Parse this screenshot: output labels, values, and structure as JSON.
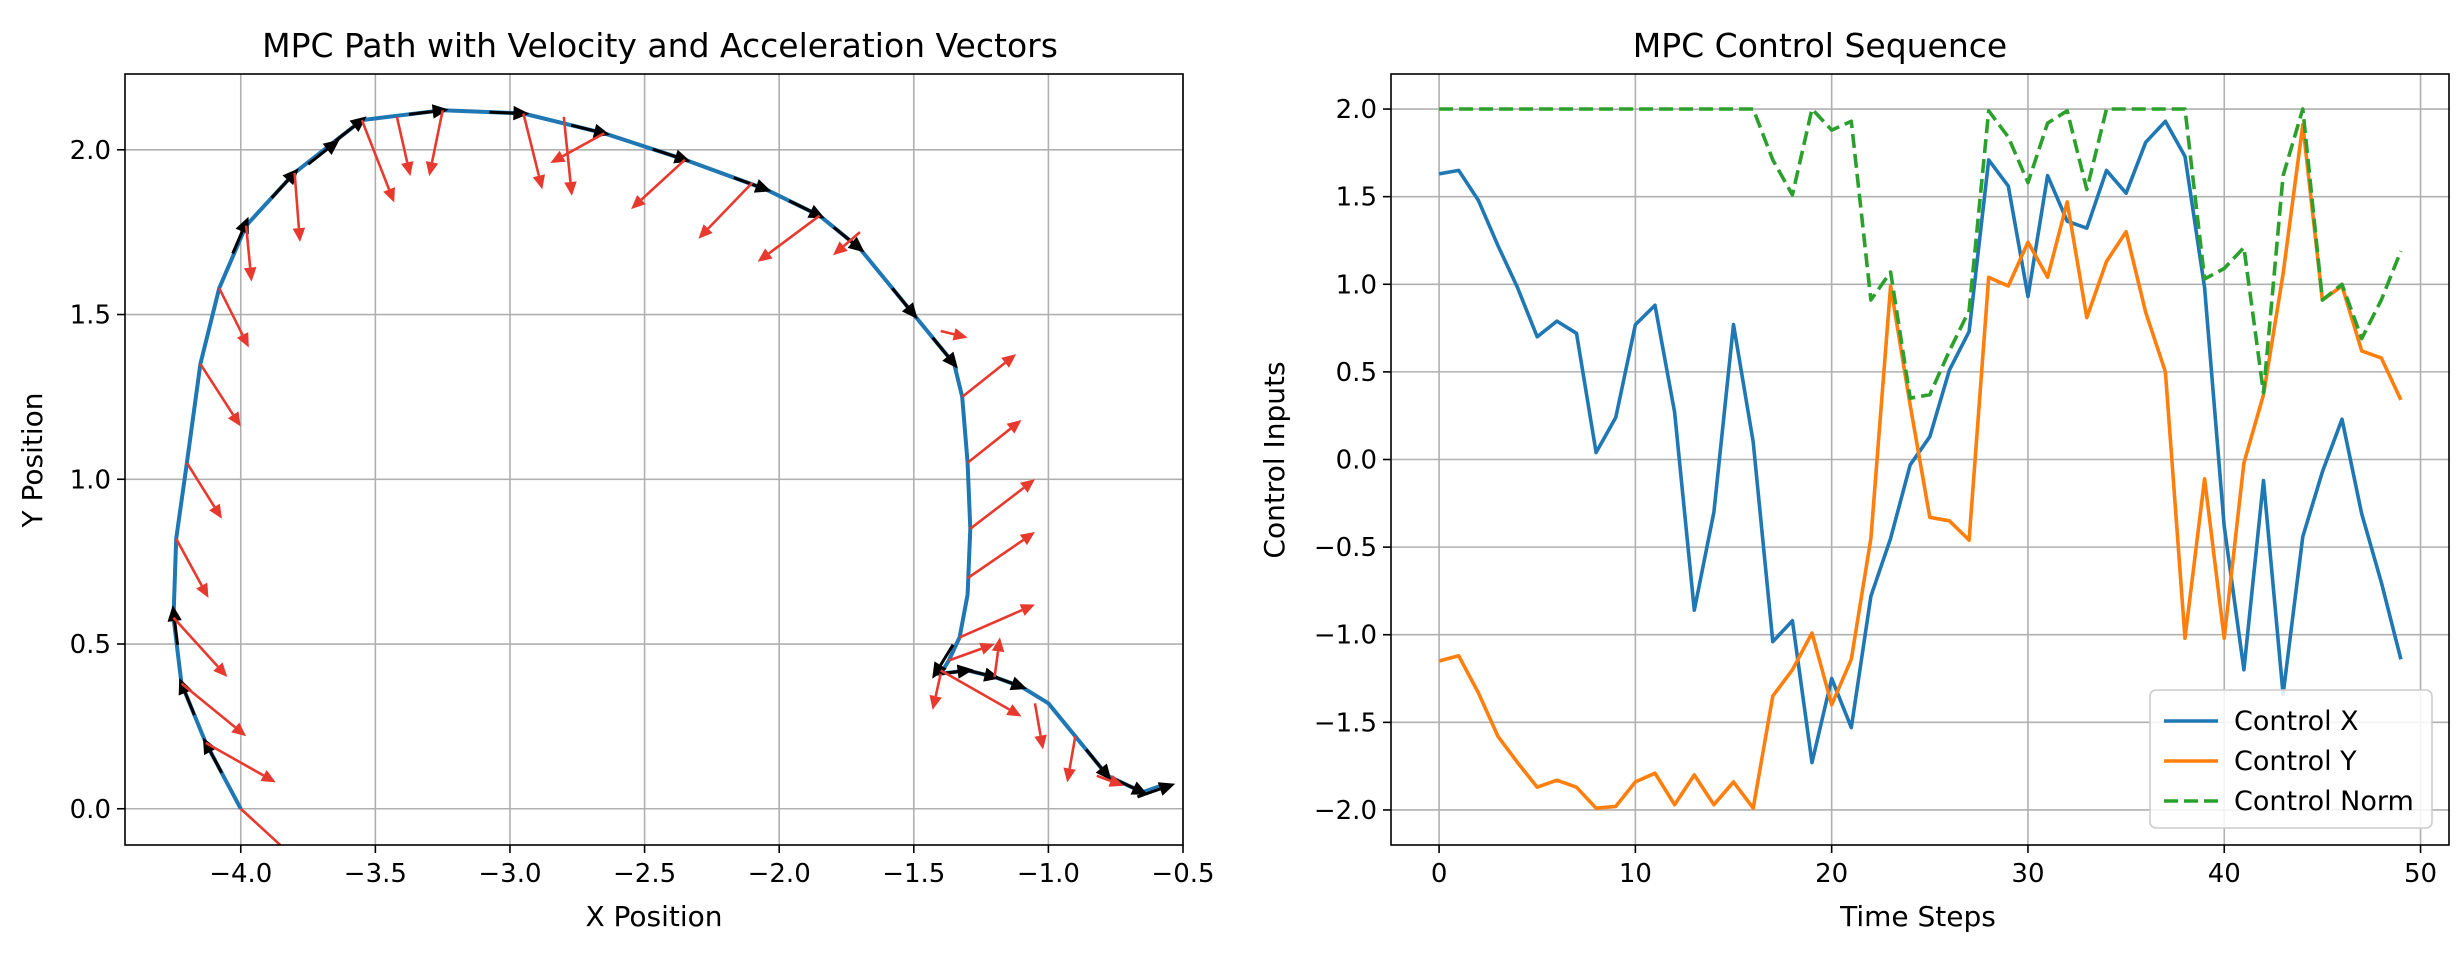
{
  "figure": {
    "left_title": "MPC Path with Velocity and Acceleration Vectors",
    "right_title": "MPC Control Sequence"
  },
  "colors": {
    "path": "#1f77b4",
    "velocity": "#000000",
    "acceleration": "#e8392e",
    "control_x": "#1f77b4",
    "control_y": "#ff7f0e",
    "control_norm": "#2ca02c",
    "grid": "#b0b0b0"
  },
  "chart_data": [
    {
      "type": "line",
      "title": "MPC Path with Velocity and Acceleration Vectors",
      "xlabel": "X Position",
      "ylabel": "Y Position",
      "xlim": [
        -4.43,
        -0.5
      ],
      "ylim": [
        -0.11,
        2.23
      ],
      "xticks": [
        -4.0,
        -3.5,
        -3.0,
        -2.5,
        -2.0,
        -1.5,
        -1.0,
        -0.5
      ],
      "xtick_labels": [
        "−4.0",
        "−3.5",
        "−3.0",
        "−2.5",
        "−2.0",
        "−1.5",
        "−1.0",
        "−0.5"
      ],
      "yticks": [
        0.0,
        0.5,
        1.0,
        1.5,
        2.0
      ],
      "ytick_labels": [
        "0.0",
        "0.5",
        "1.0",
        "1.5",
        "2.0"
      ],
      "grid": true,
      "path": {
        "x": [
          -4.0,
          -4.13,
          -4.22,
          -4.25,
          -4.24,
          -4.2,
          -4.15,
          -4.08,
          -3.98,
          -3.8,
          -3.55,
          -3.25,
          -2.95,
          -2.65,
          -2.35,
          -2.05,
          -1.85,
          -1.7,
          -1.5,
          -1.42,
          -1.35,
          -1.32,
          -1.3,
          -1.29,
          -1.3,
          -1.33,
          -1.37,
          -1.4,
          -1.3,
          -1.2,
          -1.1,
          -1.0,
          -0.9,
          -0.78,
          -0.65,
          -0.58
        ],
        "y": [
          0.0,
          0.2,
          0.38,
          0.58,
          0.82,
          1.05,
          1.35,
          1.58,
          1.77,
          1.93,
          2.09,
          2.12,
          2.11,
          2.05,
          1.97,
          1.88,
          1.8,
          1.7,
          1.5,
          1.42,
          1.35,
          1.25,
          1.05,
          0.85,
          0.65,
          0.52,
          0.45,
          0.41,
          0.42,
          0.4,
          0.37,
          0.32,
          0.22,
          0.1,
          0.05,
          0.07
        ]
      },
      "velocity_arrow_heads": {
        "x": [
          -4.13,
          -4.22,
          -4.25,
          -3.98,
          -3.8,
          -3.65,
          -3.55,
          -3.25,
          -2.95,
          -2.65,
          -2.35,
          -2.05,
          -1.85,
          -1.7,
          -1.5,
          -1.35,
          -1.42,
          -1.3,
          -1.2,
          -1.1,
          -0.78,
          -0.65,
          -0.55
        ],
        "y": [
          0.2,
          0.38,
          0.6,
          1.78,
          1.93,
          2.02,
          2.09,
          2.12,
          2.11,
          2.05,
          1.97,
          1.88,
          1.8,
          1.7,
          1.5,
          1.35,
          0.41,
          0.42,
          0.4,
          0.37,
          0.1,
          0.05,
          0.07
        ]
      },
      "acceleration_vectors": {
        "x0": [
          -4.0,
          -4.13,
          -4.22,
          -4.25,
          -4.24,
          -4.2,
          -4.15,
          -4.08,
          -3.98,
          -3.8,
          -3.55,
          -3.42,
          -3.25,
          -2.95,
          -2.8,
          -2.65,
          -2.35,
          -2.1,
          -1.85,
          -1.7,
          -1.4,
          -1.32,
          -1.3,
          -1.29,
          -1.3,
          -1.33,
          -1.4,
          -1.37,
          -1.4,
          -1.2,
          -1.05,
          -0.9,
          -0.82
        ],
        "y0": [
          0.0,
          0.2,
          0.38,
          0.58,
          0.82,
          1.05,
          1.35,
          1.58,
          1.77,
          1.93,
          2.09,
          2.1,
          2.12,
          2.11,
          2.1,
          2.05,
          1.97,
          1.9,
          1.8,
          1.75,
          1.45,
          1.25,
          1.05,
          0.85,
          0.7,
          0.52,
          0.41,
          0.45,
          0.42,
          0.4,
          0.32,
          0.22,
          0.1
        ],
        "x1": [
          -3.8,
          -3.87,
          -3.98,
          -4.05,
          -4.12,
          -4.07,
          -4.0,
          -3.97,
          -3.96,
          -3.78,
          -3.43,
          -3.37,
          -3.3,
          -2.88,
          -2.77,
          -2.85,
          -2.55,
          -2.3,
          -2.08,
          -1.8,
          -1.3,
          -1.12,
          -1.1,
          -1.05,
          -1.05,
          -1.05,
          -1.43,
          -1.2,
          -1.1,
          -1.18,
          -1.02,
          -0.93,
          -0.72
        ],
        "y1": [
          -0.15,
          0.08,
          0.22,
          0.4,
          0.64,
          0.88,
          1.16,
          1.4,
          1.6,
          1.72,
          1.84,
          1.92,
          1.92,
          1.88,
          1.86,
          1.96,
          1.82,
          1.73,
          1.66,
          1.68,
          1.43,
          1.38,
          1.18,
          1.0,
          0.84,
          0.62,
          0.3,
          0.5,
          0.28,
          0.52,
          0.18,
          0.08,
          0.07
        ]
      }
    },
    {
      "type": "line",
      "title": "MPC Control Sequence",
      "xlabel": "Time Steps",
      "ylabel": "Control Inputs",
      "xlim": [
        -2.45,
        51.45
      ],
      "ylim": [
        -2.2,
        2.2
      ],
      "xticks": [
        0,
        10,
        20,
        30,
        40,
        50
      ],
      "xtick_labels": [
        "0",
        "10",
        "20",
        "30",
        "40",
        "50"
      ],
      "yticks": [
        -2.0,
        -1.5,
        -1.0,
        -0.5,
        0.0,
        0.5,
        1.0,
        1.5,
        2.0
      ],
      "ytick_labels": [
        "−2.0",
        "−1.5",
        "−1.0",
        "−0.5",
        "0.0",
        "0.5",
        "1.0",
        "1.5",
        "2.0"
      ],
      "grid": true,
      "legend_position": "lower-right",
      "x": [
        0,
        1,
        2,
        3,
        4,
        5,
        6,
        7,
        8,
        9,
        10,
        11,
        12,
        13,
        14,
        15,
        16,
        17,
        18,
        19,
        20,
        21,
        22,
        23,
        24,
        25,
        26,
        27,
        28,
        29,
        30,
        31,
        32,
        33,
        34,
        35,
        36,
        37,
        38,
        39,
        40,
        41,
        42,
        43,
        44,
        45,
        46,
        47,
        48,
        49
      ],
      "series": [
        {
          "name": "Control X",
          "style": "solid",
          "values": [
            1.63,
            1.65,
            1.48,
            1.22,
            0.98,
            0.7,
            0.79,
            0.72,
            0.04,
            0.24,
            0.77,
            0.88,
            0.27,
            -0.86,
            -0.3,
            0.77,
            0.1,
            -1.04,
            -0.92,
            -1.73,
            -1.25,
            -1.53,
            -0.78,
            -0.45,
            -0.03,
            0.13,
            0.51,
            0.73,
            1.71,
            1.56,
            0.93,
            1.62,
            1.36,
            1.32,
            1.65,
            1.52,
            1.81,
            1.93,
            1.73,
            0.98,
            -0.38,
            -1.2,
            -0.12,
            -1.34,
            -0.44,
            -0.07,
            0.23,
            -0.31,
            -0.7,
            -1.14
          ]
        },
        {
          "name": "Control Y",
          "style": "solid",
          "values": [
            -1.15,
            -1.12,
            -1.33,
            -1.58,
            -1.73,
            -1.87,
            -1.83,
            -1.87,
            -1.99,
            -1.98,
            -1.84,
            -1.79,
            -1.97,
            -1.8,
            -1.97,
            -1.84,
            -1.99,
            -1.35,
            -1.2,
            -0.99,
            -1.4,
            -1.14,
            -0.45,
            0.99,
            0.31,
            -0.33,
            -0.35,
            -0.46,
            1.04,
            0.99,
            1.24,
            1.04,
            1.47,
            0.81,
            1.13,
            1.3,
            0.84,
            0.5,
            -1.02,
            -0.11,
            -1.02,
            -0.02,
            0.37,
            1.06,
            1.91,
            0.91,
            0.99,
            0.62,
            0.58,
            0.34
          ]
        },
        {
          "name": "Control Norm",
          "style": "dashed",
          "values": [
            2.0,
            2.0,
            2.0,
            2.0,
            2.0,
            2.0,
            2.0,
            2.0,
            2.0,
            2.0,
            2.0,
            2.0,
            2.0,
            2.0,
            2.0,
            2.0,
            2.0,
            1.71,
            1.51,
            2.0,
            1.88,
            1.93,
            0.91,
            1.07,
            0.35,
            0.37,
            0.62,
            0.85,
            1.99,
            1.84,
            1.58,
            1.92,
            1.99,
            1.54,
            2.0,
            2.0,
            2.0,
            2.0,
            2.0,
            1.03,
            1.09,
            1.21,
            0.38,
            1.62,
            2.0,
            0.91,
            1.0,
            0.69,
            0.91,
            1.19
          ]
        }
      ]
    }
  ]
}
